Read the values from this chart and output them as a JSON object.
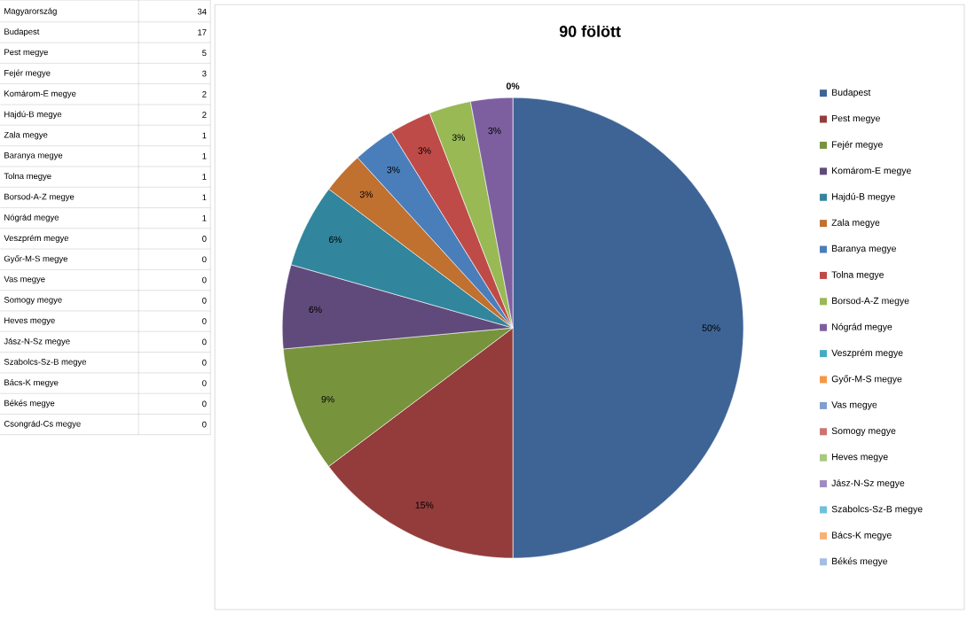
{
  "chart_data": {
    "type": "pie",
    "title": "90 fölött",
    "categories": [
      "Budapest",
      "Pest megye",
      "Fejér megye",
      "Komárom-E megye",
      "Hajdú-B megye",
      "Zala megye",
      "Baranya megye",
      "Tolna megye",
      "Borsod-A-Z megye",
      "Nógrád megye",
      "Veszprém megye",
      "Győr-M-S megye",
      "Vas megye",
      "Somogy megye",
      "Heves megye",
      "Jász-N-Sz megye",
      "Szabolcs-Sz-B megye",
      "Bács-K megye",
      "Békés megye"
    ],
    "values": [
      50,
      14.72,
      8.82,
      5.88,
      5.88,
      2.94,
      2.94,
      2.94,
      2.94,
      2.94,
      0,
      0,
      0,
      0,
      0,
      0,
      0,
      0,
      0
    ],
    "value_labels": [
      "50%",
      "15%",
      "9%",
      "6%",
      "6%",
      "3%",
      "3%",
      "3%",
      "3%",
      "3%",
      "0%",
      null,
      null,
      null,
      null,
      null,
      null,
      null,
      null
    ],
    "colors": [
      "#3e6496",
      "#943c3b",
      "#77933c",
      "#604a7b",
      "#31859c",
      "#c0702f",
      "#4a7ebb",
      "#be4b48",
      "#98b954",
      "#7d5fa0",
      "#46aac5",
      "#f79646",
      "#7f9fcc",
      "#cd7371",
      "#a8c97f",
      "#a08ac1",
      "#6fc0db",
      "#f9b074",
      "#a5bde3"
    ],
    "legend": "right",
    "annotations": [
      "Magyarország",
      "34",
      "Budapest",
      "17",
      "Pest megye",
      "5",
      "Fejér megye",
      "3",
      "Komárom-E megye",
      "2",
      "Hajdú-B megye",
      "2",
      "Zala megye",
      "1",
      "Baranya megye",
      "1",
      "Tolna megye",
      "1",
      "Borsod-A-Z megye",
      "1",
      "Nógrád megye",
      "1",
      "Veszprém megye",
      "0",
      "Győr-M-S megye",
      "0",
      "Vas megye",
      "0",
      "Somogy megye",
      "0",
      "Heves megye",
      "0",
      "Jász-N-Sz megye",
      "0",
      "Szabolcs-Sz-B megye",
      "0",
      "Bács-K megye",
      "0",
      "Békés megye",
      "0",
      "Csongrád-Cs megye",
      "0"
    ]
  }
}
